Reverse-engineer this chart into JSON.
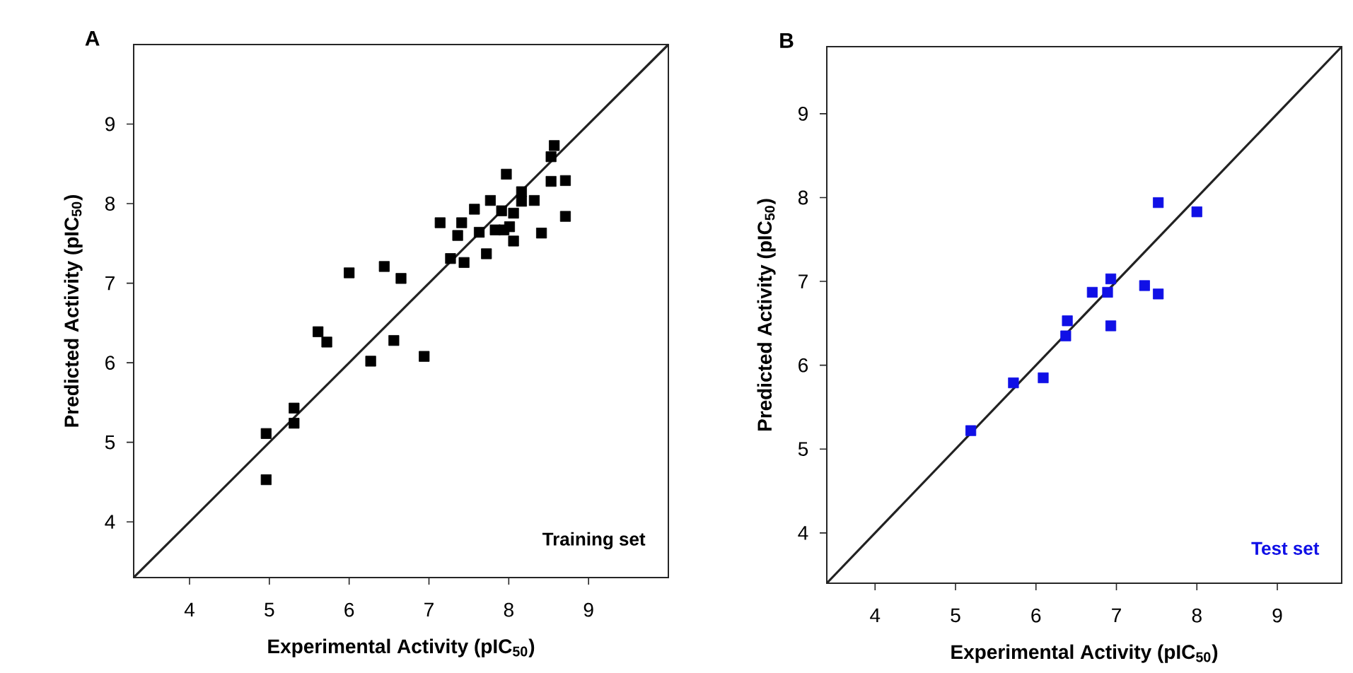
{
  "chart_data": [
    {
      "type": "scatter",
      "title": "A",
      "xlabel": "Experimental Activity (pIC$_{50}$)",
      "ylabel": "Predicted Activity (pIC$_{50}$)",
      "annotations": [
        "Training set"
      ],
      "marker": "square",
      "xlim": [
        3.3,
        10
      ],
      "ylim": [
        3.3,
        10
      ],
      "xticks": [
        4,
        5,
        6,
        7,
        8,
        9
      ],
      "yticks": [
        4,
        5,
        6,
        7,
        8,
        9
      ],
      "series": [
        {
          "color": "#000000",
          "x": [
            8.57,
            8.53,
            7.97,
            8.53,
            8.71,
            7.77,
            7.57,
            8.16,
            8.16,
            8.32,
            8.06,
            7.91,
            8.71,
            7.14,
            7.41,
            7.36,
            7.63,
            7.83,
            7.94,
            8.01,
            8.06,
            8.41,
            7.27,
            7.44,
            7.72,
            6.0,
            6.44,
            6.65,
            5.61,
            5.72,
            6.56,
            6.27,
            6.94,
            5.31,
            5.31,
            4.96,
            4.96
          ],
          "values": [
            8.73,
            8.59,
            8.37,
            8.28,
            8.29,
            8.04,
            7.93,
            8.15,
            8.03,
            8.04,
            7.88,
            7.91,
            7.84,
            7.76,
            7.76,
            7.6,
            7.64,
            7.67,
            7.67,
            7.71,
            7.53,
            7.63,
            7.31,
            7.26,
            7.37,
            7.13,
            7.21,
            7.06,
            6.39,
            6.26,
            6.28,
            6.02,
            6.08,
            5.43,
            5.24,
            5.11,
            4.53
          ]
        },
        {
          "type": "line",
          "color": "#222222",
          "marker": "none",
          "x": [
            3.3,
            10
          ],
          "values": [
            3.3,
            10
          ]
        }
      ]
    },
    {
      "type": "scatter",
      "title": "B",
      "xlabel": "Experimental Activity (pIC$_{50}$)",
      "ylabel": "Predicted Activity (pIC$_{50}$)",
      "annotations": [
        "Test set"
      ],
      "marker": "square",
      "xlim": [
        3.4,
        9.8
      ],
      "ylim": [
        3.4,
        9.8
      ],
      "xticks": [
        4,
        5,
        6,
        7,
        8,
        9
      ],
      "yticks": [
        4,
        5,
        6,
        7,
        8,
        9
      ],
      "series": [
        {
          "color": "#1010e6",
          "x": [
            5.19,
            5.72,
            6.09,
            6.37,
            6.39,
            6.7,
            6.89,
            6.93,
            6.93,
            7.35,
            7.52,
            7.52,
            8.0
          ],
          "values": [
            5.22,
            5.79,
            5.85,
            6.35,
            6.53,
            6.87,
            6.87,
            7.03,
            6.47,
            6.95,
            6.85,
            7.94,
            7.83
          ]
        },
        {
          "type": "line",
          "color": "#222222",
          "marker": "none",
          "x": [
            3.4,
            9.8
          ],
          "values": [
            3.4,
            9.8
          ]
        }
      ]
    }
  ]
}
